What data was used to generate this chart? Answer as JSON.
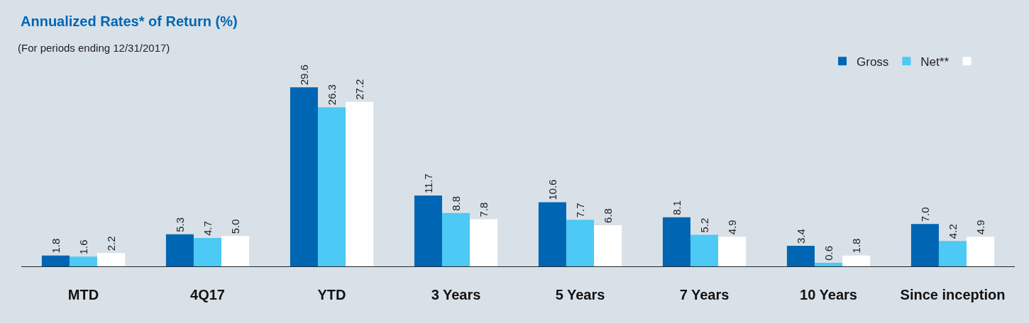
{
  "chart_data": {
    "type": "bar",
    "title": "Annualized Rates* of Return (%)",
    "subtitle": "(For periods ending 12/31/2017)",
    "categories": [
      "MTD",
      "4Q17",
      "YTD",
      "3 Years",
      "5 Years",
      "7 Years",
      "10 Years",
      "Since inception"
    ],
    "series": [
      {
        "name": "Gross",
        "color": "#0066b3",
        "values": [
          1.8,
          5.3,
          29.6,
          11.7,
          10.6,
          8.1,
          3.4,
          7
        ],
        "value_labels": [
          "1.8",
          "5.3",
          "29.6",
          "11.7",
          "10.6",
          "8.1",
          "3.4",
          "7.0"
        ]
      },
      {
        "name": "Net**",
        "color": "#4cc9f5",
        "values": [
          1.6,
          4.7,
          26.3,
          8.8,
          7.7,
          5.2,
          0.6,
          4.2
        ],
        "value_labels": [
          "1.6",
          "4.7",
          "26.3",
          "8.8",
          "7.7",
          "5.2",
          "0.6",
          "4.2"
        ]
      },
      {
        "color": "#ffffff",
        "values": [
          2.2,
          5,
          27.2,
          7.8,
          6.8,
          4.9,
          1.8,
          4.9
        ],
        "value_labels": [
          "2.2",
          "5.0",
          "27.2",
          "7.8",
          "6.8",
          "4.9",
          "1.8",
          "4.9"
        ]
      }
    ],
    "legend": "top right",
    "grid": false
  }
}
